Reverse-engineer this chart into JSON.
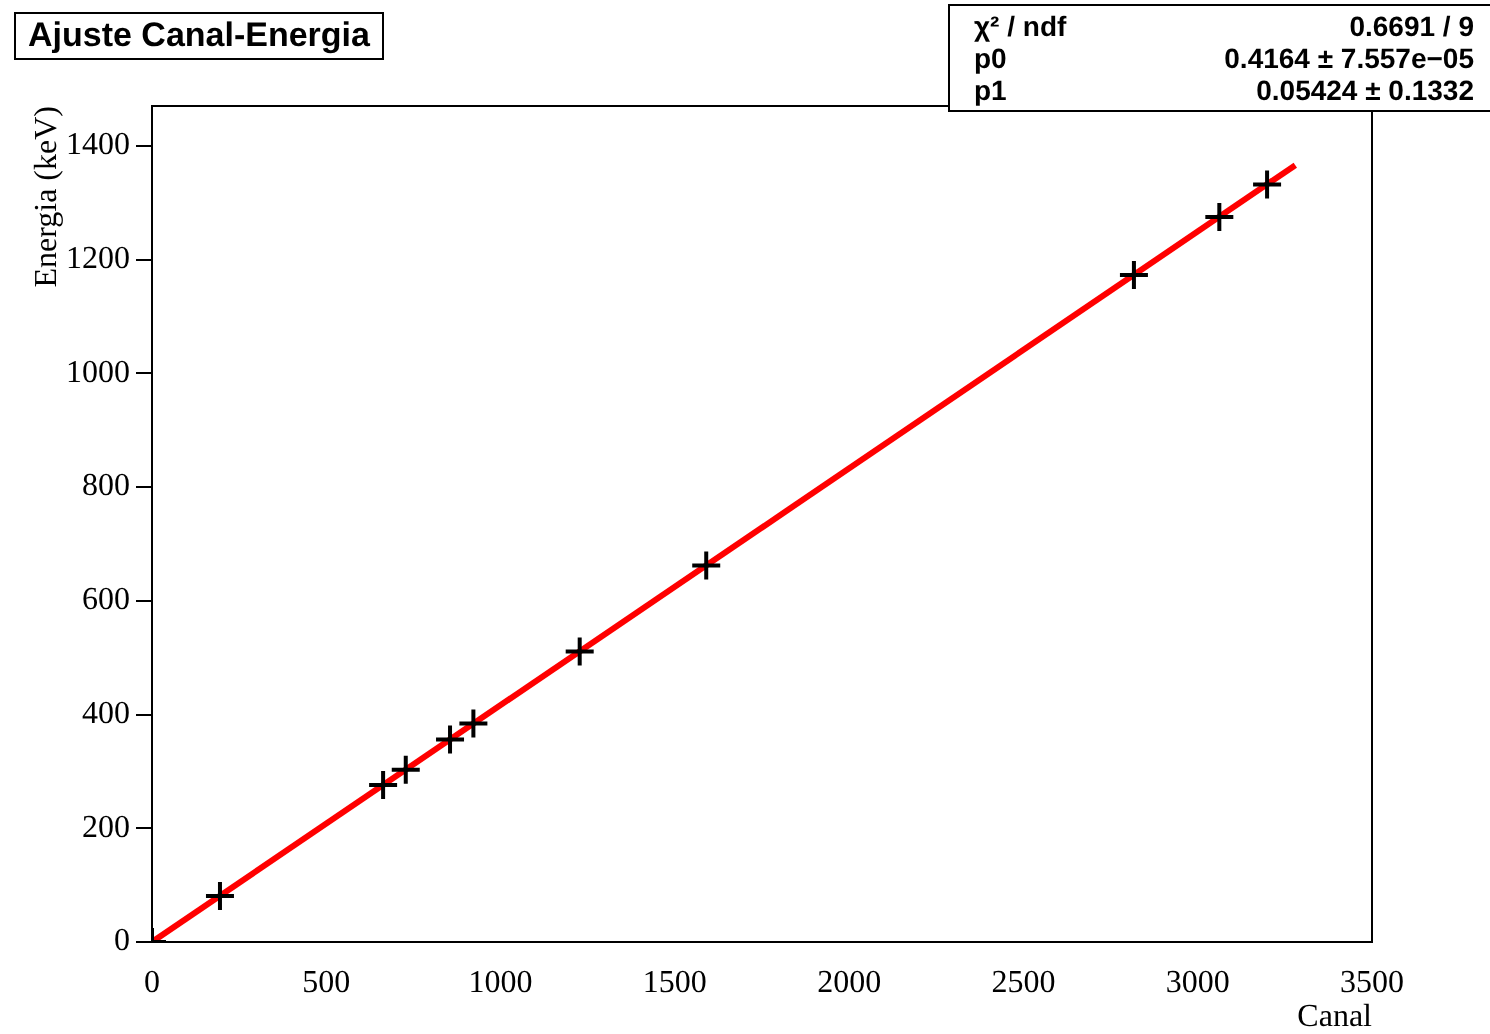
{
  "chart_data": {
    "type": "scatter",
    "title": "Ajuste Canal-Energia",
    "xlabel": "Canal",
    "ylabel": "Energia (keV)",
    "annotations": [
      "χ² / ndf  0.6691 / 9",
      "p0  0.4164 ± 7.557e−05",
      "p1  0.05424 ± 0.1332"
    ],
    "series": [
      {
        "type": "scatter",
        "color": "#000000",
        "x": [
          0,
          195,
          663,
          728,
          855,
          922,
          1227,
          1590,
          2817,
          3062,
          3199
        ],
        "values": [
          0,
          81,
          276,
          303,
          356,
          384,
          511,
          662,
          1173,
          1275,
          1332
        ]
      },
      {
        "type": "line",
        "color": "#ff0000",
        "x": [
          0,
          3280
        ],
        "values": [
          0,
          1366
        ],
        "marker": "none"
      }
    ],
    "marker": "cross",
    "line_style": "solid",
    "xlim": [
      0,
      3500
    ],
    "xticks": [
      0,
      500,
      1000,
      1500,
      2000,
      2500,
      3000,
      3500
    ],
    "ylim": [
      0,
      1470
    ],
    "yticks": [
      0,
      200,
      400,
      600,
      800,
      1000,
      1200,
      1400
    ],
    "grid": false,
    "legend": false
  }
}
